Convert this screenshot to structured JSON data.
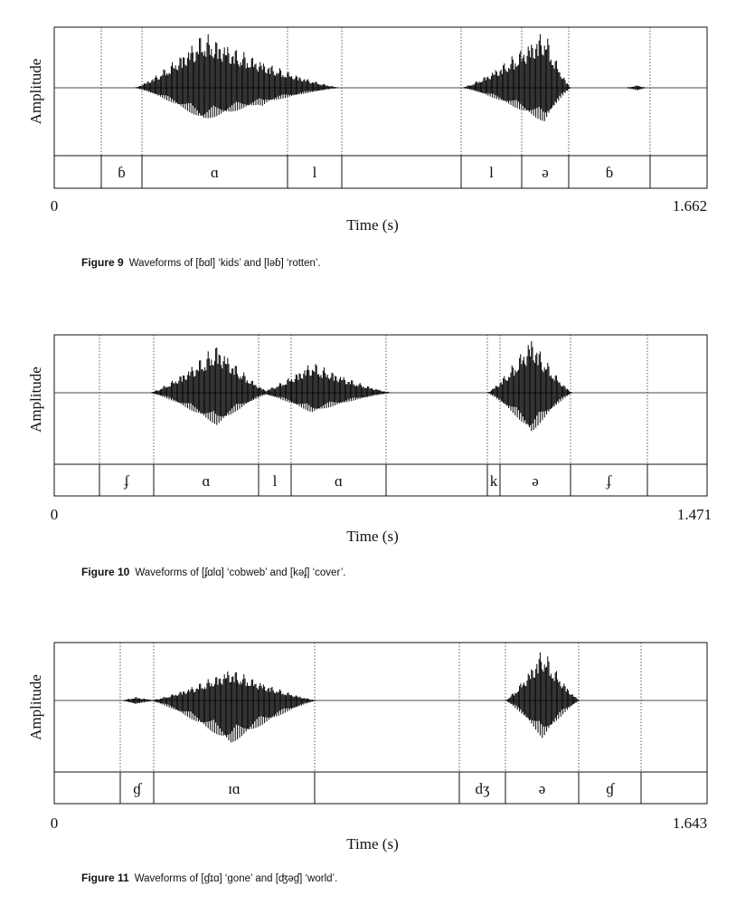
{
  "figures": [
    {
      "y_label": "Amplitude",
      "x_label": "Time (s)",
      "x_start": "0",
      "x_end": "1.662",
      "segments": [
        "ɓ",
        "ɑ",
        "l",
        "l",
        "ə",
        "ɓ"
      ],
      "caption": {
        "label": "Figure 9",
        "text": "Waveforms of [ɓɑl] ‘kids’ and [ləɓ] ‘rotten’."
      }
    },
    {
      "y_label": "Amplitude",
      "x_label": "Time (s)",
      "x_start": "0",
      "x_end": "1.471",
      "segments": [
        "ʄ",
        "ɑ",
        "l",
        "ɑ",
        "k",
        "ə",
        "ʄ"
      ],
      "caption": {
        "label": "Figure 10",
        "text": "Waveforms of [ʄɑlɑ] ‘cobweb’ and [kəʄ] ‘cover’."
      }
    },
    {
      "y_label": "Amplitude",
      "x_label": "Time (s)",
      "x_start": "0",
      "x_end": "1.643",
      "segments": [
        "ɠ",
        "ɪɑ",
        "dʒ",
        "ə",
        "ɠ"
      ],
      "caption": {
        "label": "Figure 11",
        "text": "Waveforms of [ɠɪɑ] ‘gone’ and [ʤəɠ] ‘world’."
      }
    }
  ]
}
